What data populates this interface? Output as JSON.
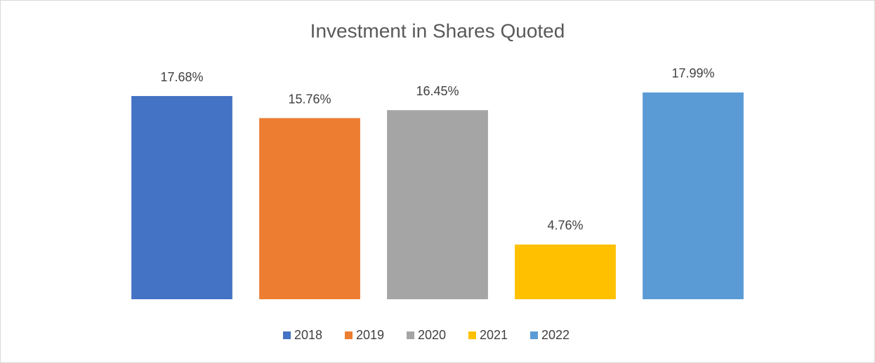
{
  "chart_data": {
    "type": "bar",
    "title": "Investment in Shares Quoted",
    "categories": [
      null
    ],
    "series": [
      {
        "name": "2018",
        "color": "#4472c4",
        "values": [
          17.68
        ],
        "value_labels": [
          "17.68%"
        ]
      },
      {
        "name": "2019",
        "color": "#ed7d31",
        "values": [
          15.76
        ],
        "value_labels": [
          "15.76%"
        ]
      },
      {
        "name": "2020",
        "color": "#a5a5a5",
        "values": [
          16.45
        ],
        "value_labels": [
          "16.45%"
        ]
      },
      {
        "name": "2021",
        "color": "#ffc000",
        "values": [
          4.76
        ],
        "value_labels": [
          "4.76%"
        ]
      },
      {
        "name": "2022",
        "color": "#5b9bd5",
        "values": [
          17.99
        ],
        "value_labels": [
          "17.99%"
        ]
      }
    ],
    "ylim": [
      0,
      20
    ],
    "legend": "bottom"
  }
}
